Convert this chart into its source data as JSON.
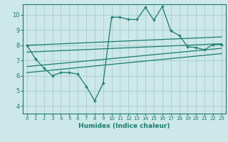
{
  "xlabel": "Humidex (Indice chaleur)",
  "bg_color": "#cce8e8",
  "grid_color": "#aacccc",
  "line_color": "#1a7a6e",
  "xlim": [
    -0.5,
    23.5
  ],
  "ylim": [
    3.5,
    10.7
  ],
  "xticks": [
    0,
    1,
    2,
    3,
    4,
    5,
    6,
    7,
    8,
    9,
    10,
    11,
    12,
    13,
    14,
    15,
    16,
    17,
    18,
    19,
    20,
    21,
    22,
    23
  ],
  "yticks": [
    4,
    5,
    6,
    7,
    8,
    9,
    10
  ],
  "zigzag_x": [
    0,
    1,
    2,
    3,
    4,
    5,
    6,
    7,
    8,
    9,
    10,
    11,
    12,
    13,
    14,
    15,
    16,
    17,
    18,
    19,
    20,
    21,
    22,
    23
  ],
  "zigzag_y": [
    8.0,
    7.1,
    6.5,
    6.0,
    6.2,
    6.2,
    6.1,
    5.3,
    4.35,
    5.5,
    9.85,
    9.85,
    9.7,
    9.7,
    10.5,
    9.65,
    10.55,
    8.95,
    8.65,
    7.9,
    7.85,
    7.7,
    8.05,
    8.05
  ],
  "trend1_x": [
    0,
    23
  ],
  "trend1_y": [
    8.0,
    8.55
  ],
  "trend2_x": [
    0,
    23
  ],
  "trend2_y": [
    7.55,
    8.1
  ],
  "trend3_x": [
    0,
    23
  ],
  "trend3_y": [
    6.6,
    7.8
  ],
  "trend4_x": [
    0,
    23
  ],
  "trend4_y": [
    6.2,
    7.45
  ]
}
